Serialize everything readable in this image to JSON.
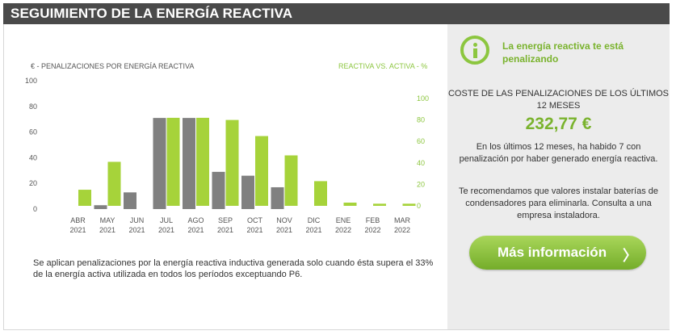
{
  "header": {
    "title": "SEGUIMIENTO DE LA ENERGÍA REACTIVA"
  },
  "chart_labels": {
    "left_axis": "€ - PENALIZACIONES POR ENERGÍA REACTIVA",
    "right_axis": "REACTIVA VS. ACTIVA - %"
  },
  "chart_data": {
    "type": "bar",
    "categories": [
      "ABR\n2021",
      "MAY\n2021",
      "JUN\n2021",
      "JUL\n2021",
      "AGO\n2021",
      "SEP\n2021",
      "OCT\n2021",
      "NOV\n2021",
      "DIC\n2021",
      "ENE\n2022",
      "FEB\n2022",
      "MAR\n2022"
    ],
    "series": [
      {
        "name": "€ - PENALIZACIONES POR ENERGÍA REACTIVA",
        "axis": "left",
        "color": "#808080",
        "values": [
          0,
          3,
          13,
          71,
          71,
          29,
          26,
          17,
          0,
          0,
          0,
          0
        ]
      },
      {
        "name": "REACTIVA VS. ACTIVA - %",
        "axis": "right",
        "color": "#a6d33a",
        "values": [
          15,
          41,
          0,
          82,
          82,
          80,
          65,
          47,
          23,
          3,
          2,
          2
        ]
      }
    ],
    "ylim_left": [
      0,
      100
    ],
    "yticks_left": [
      0,
      20,
      40,
      60,
      80,
      100
    ],
    "ylim_right": [
      0,
      100
    ],
    "yticks_right": [
      0,
      20,
      40,
      60,
      80,
      100
    ]
  },
  "footnote": "Se aplican penalizaciones por la energía reactiva inductiva generada solo cuando ésta supera el 33% de la energía activa utilizada en todos los períodos exceptuando P6.",
  "summary": {
    "alert": "La energía reactiva te está penalizando",
    "cost_title": "COSTE DE LAS PENALIZACIONES DE LOS ÚLTIMOS 12 MESES",
    "cost_value": "232,77 €",
    "desc1": "En los últimos 12 meses, ha habido 7 con penalización por haber generado energía reactiva.",
    "desc2": "Te recomendamos que valores instalar baterías de condensadores para eliminarla. Consulta a una empresa instaladora.",
    "button_label": "Más información",
    "button_arrow": "〉"
  },
  "icons": {
    "alert_icon": "info-icon",
    "button_icon": "chevron-right-icon"
  }
}
